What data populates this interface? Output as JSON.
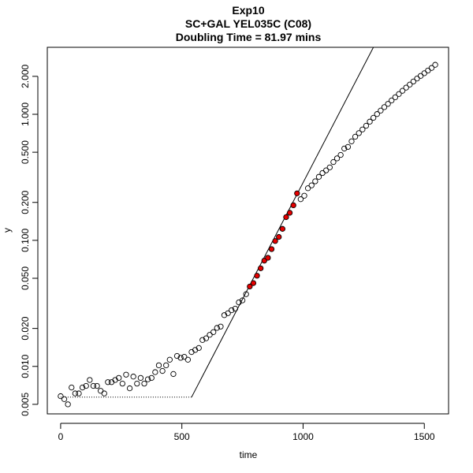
{
  "chart_data": {
    "type": "scatter",
    "title_lines": [
      "Exp10",
      "SC+GAL YEL035C (C08)",
      "Doubling Time = 81.97 mins"
    ],
    "xlabel": "time",
    "ylabel": "y",
    "xlim": [
      -55,
      1600
    ],
    "ylim": [
      0.0042,
      3.4
    ],
    "y_scale": "log",
    "grid": false,
    "x_ticks": [
      0,
      500,
      1000,
      1500
    ],
    "x_tick_labels": [
      "0",
      "500",
      "1000",
      "1500"
    ],
    "y_ticks": [
      0.005,
      0.01,
      0.02,
      0.05,
      0.1,
      0.2,
      0.5,
      1,
      2
    ],
    "y_tick_labels": [
      "0.005",
      "0.010",
      "0.020",
      "0.050",
      "0.100",
      "0.200",
      "0.500",
      "1.000",
      "2.000"
    ],
    "colors": {
      "open_point": "#000000",
      "highlight_point": "#e60000",
      "line": "#000000"
    },
    "series": [
      {
        "role": "observations",
        "marker": "open-circle",
        "points": [
          [
            0,
            0.0058
          ],
          [
            15,
            0.0055
          ],
          [
            30,
            0.005
          ],
          [
            45,
            0.0068
          ],
          [
            60,
            0.0061
          ],
          [
            75,
            0.0061
          ],
          [
            90,
            0.0068
          ],
          [
            105,
            0.007
          ],
          [
            120,
            0.0078
          ],
          [
            135,
            0.007
          ],
          [
            150,
            0.007
          ],
          [
            165,
            0.0064
          ],
          [
            180,
            0.0061
          ],
          [
            195,
            0.0075
          ],
          [
            210,
            0.0075
          ],
          [
            225,
            0.0078
          ],
          [
            240,
            0.0081
          ],
          [
            255,
            0.0073
          ],
          [
            270,
            0.0086
          ],
          [
            285,
            0.0067
          ],
          [
            300,
            0.0083
          ],
          [
            315,
            0.0073
          ],
          [
            330,
            0.0081
          ],
          [
            345,
            0.0073
          ],
          [
            360,
            0.0079
          ],
          [
            375,
            0.0081
          ],
          [
            390,
            0.009
          ],
          [
            405,
            0.0102
          ],
          [
            420,
            0.0092
          ],
          [
            435,
            0.0102
          ],
          [
            450,
            0.0113
          ],
          [
            465,
            0.0087
          ],
          [
            480,
            0.0121
          ],
          [
            495,
            0.0117
          ],
          [
            510,
            0.0119
          ],
          [
            525,
            0.0113
          ],
          [
            540,
            0.013
          ],
          [
            555,
            0.0135
          ],
          [
            570,
            0.014
          ],
          [
            585,
            0.0162
          ],
          [
            600,
            0.0167
          ],
          [
            615,
            0.0178
          ],
          [
            630,
            0.0187
          ],
          [
            645,
            0.0202
          ],
          [
            660,
            0.0207
          ],
          [
            675,
            0.0255
          ],
          [
            690,
            0.0264
          ],
          [
            705,
            0.0279
          ],
          [
            720,
            0.0287
          ],
          [
            735,
            0.0322
          ],
          [
            750,
            0.0334
          ],
          [
            765,
            0.0374
          ],
          [
            990,
            0.212
          ],
          [
            1005,
            0.226
          ],
          [
            1020,
            0.259
          ],
          [
            1035,
            0.273
          ],
          [
            1050,
            0.294
          ],
          [
            1065,
            0.319
          ],
          [
            1080,
            0.342
          ],
          [
            1095,
            0.359
          ],
          [
            1110,
            0.379
          ],
          [
            1125,
            0.418
          ],
          [
            1140,
            0.447
          ],
          [
            1155,
            0.476
          ],
          [
            1170,
            0.535
          ],
          [
            1185,
            0.551
          ],
          [
            1200,
            0.61
          ],
          [
            1215,
            0.664
          ],
          [
            1230,
            0.709
          ],
          [
            1245,
            0.758
          ],
          [
            1260,
            0.811
          ],
          [
            1275,
            0.874
          ],
          [
            1290,
            0.938
          ],
          [
            1305,
            1.004
          ],
          [
            1320,
            1.07
          ],
          [
            1335,
            1.14
          ],
          [
            1350,
            1.209
          ],
          [
            1365,
            1.288
          ],
          [
            1380,
            1.365
          ],
          [
            1395,
            1.448
          ],
          [
            1410,
            1.536
          ],
          [
            1425,
            1.628
          ],
          [
            1440,
            1.721
          ],
          [
            1455,
            1.821
          ],
          [
            1470,
            1.921
          ],
          [
            1485,
            2.017
          ],
          [
            1500,
            2.117
          ],
          [
            1515,
            2.223
          ],
          [
            1530,
            2.331
          ],
          [
            1545,
            2.47
          ]
        ]
      },
      {
        "role": "fitted-window",
        "marker": "filled-circle",
        "points": [
          [
            780,
            0.043
          ],
          [
            795,
            0.0458
          ],
          [
            810,
            0.0524
          ],
          [
            825,
            0.06
          ],
          [
            840,
            0.069
          ],
          [
            855,
            0.0727
          ],
          [
            870,
            0.0852
          ],
          [
            885,
            0.0987
          ],
          [
            900,
            0.1064
          ],
          [
            915,
            0.1233
          ],
          [
            930,
            0.1528
          ],
          [
            945,
            0.1654
          ],
          [
            960,
            0.1898
          ],
          [
            975,
            0.2359
          ]
        ]
      }
    ],
    "fit_line": {
      "style": "solid",
      "from": [
        540,
        0.0057
      ],
      "to": [
        1290,
        3.4
      ]
    },
    "baseline": {
      "style": "dotted",
      "y": 0.0057,
      "x": [
        0,
        540
      ]
    }
  }
}
